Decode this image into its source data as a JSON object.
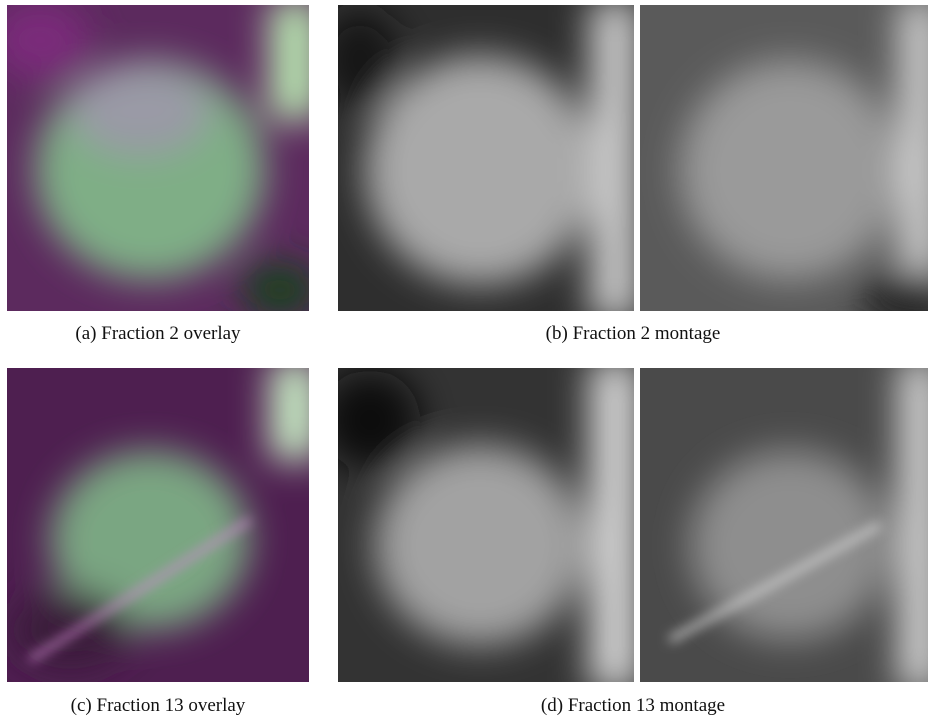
{
  "figures": [
    {
      "label": "(a)",
      "caption": "Fraction 2 overlay"
    },
    {
      "label": "(b)",
      "caption": "Fraction 2 montage"
    },
    {
      "label": "(c)",
      "caption": "Fraction 13 overlay"
    },
    {
      "label": "(d)",
      "caption": "Fraction 13 montage"
    }
  ]
}
